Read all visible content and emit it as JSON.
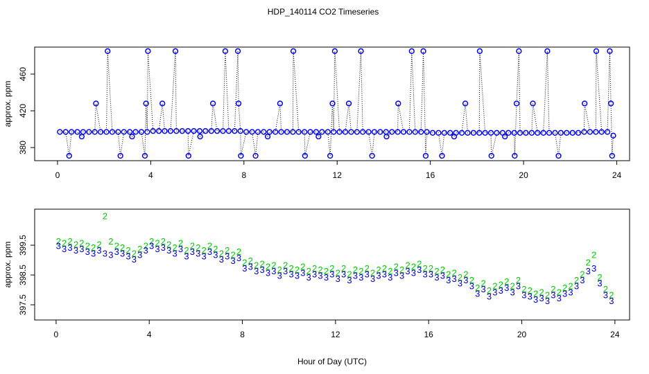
{
  "chart_data": [
    {
      "type": "line",
      "title": "HDP_140114  CO2 Timeseries",
      "ylabel": "approx. ppm",
      "xlim": [
        -0.98,
        24.55
      ],
      "xticks": [
        0,
        4,
        8,
        12,
        16,
        20,
        24
      ],
      "ylim": [
        365.7,
        489.4
      ],
      "yticks": [
        380,
        420,
        460
      ],
      "x": [
        0.1,
        0.35,
        0.5,
        0.6,
        0.85,
        1.04,
        1.1,
        1.35,
        1.6,
        1.65,
        1.85,
        2.1,
        2.15,
        2.35,
        2.6,
        2.7,
        2.85,
        3.1,
        3.2,
        3.35,
        3.6,
        3.75,
        3.8,
        3.85,
        3.88,
        4.1,
        4.35,
        4.5,
        4.6,
        4.85,
        5.06,
        5.1,
        5.35,
        5.6,
        5.62,
        5.85,
        6.1,
        6.12,
        6.35,
        6.6,
        6.67,
        6.85,
        7.1,
        7.2,
        7.35,
        7.6,
        7.74,
        7.77,
        7.85,
        7.87,
        8.1,
        8.35,
        8.5,
        8.6,
        8.85,
        9.02,
        9.1,
        9.35,
        9.55,
        9.6,
        9.85,
        10.1,
        10.12,
        10.35,
        10.6,
        10.62,
        10.85,
        11.1,
        11.2,
        11.35,
        11.6,
        11.7,
        11.8,
        11.85,
        11.9,
        12.1,
        12.35,
        12.5,
        12.6,
        12.85,
        13.02,
        13.1,
        13.35,
        13.5,
        13.6,
        13.85,
        14.1,
        14.12,
        14.35,
        14.6,
        14.62,
        14.85,
        15.1,
        15.2,
        15.35,
        15.6,
        15.7,
        15.8,
        15.85,
        16.1,
        16.35,
        16.5,
        16.6,
        16.85,
        17.02,
        17.1,
        17.35,
        17.5,
        17.6,
        17.85,
        18.1,
        18.12,
        18.35,
        18.6,
        18.62,
        18.85,
        19.1,
        19.2,
        19.35,
        19.6,
        19.62,
        19.7,
        19.8,
        19.85,
        20.1,
        20.35,
        20.4,
        20.6,
        20.85,
        21.02,
        21.1,
        21.35,
        21.5,
        21.6,
        21.85,
        22.1,
        22.35,
        22.6,
        22.62,
        22.85,
        23.1,
        23.12,
        23.35,
        23.6,
        23.7,
        23.75,
        23.8,
        23.85
      ],
      "series": [
        {
          "color": "#0000ff",
          "line_color": "#000000",
          "values": [
            397,
            397,
            371,
            397,
            397,
            392,
            397,
            397,
            397,
            428,
            397,
            397,
            485,
            397,
            397,
            371,
            397,
            397,
            392,
            397,
            397,
            371,
            428,
            397,
            485,
            398,
            398,
            428,
            398,
            398,
            485,
            398,
            398,
            398,
            371,
            398,
            398,
            392,
            398,
            398,
            428,
            398,
            398,
            485,
            398,
            398,
            485,
            428,
            398,
            371,
            397,
            397,
            371,
            397,
            397,
            392,
            397,
            397,
            428,
            397,
            397,
            397,
            485,
            397,
            397,
            371,
            397,
            397,
            392,
            397,
            397,
            371,
            428,
            397,
            485,
            397,
            397,
            428,
            397,
            397,
            485,
            397,
            397,
            371,
            397,
            397,
            397,
            392,
            397,
            397,
            428,
            397,
            397,
            485,
            397,
            397,
            485,
            371,
            397,
            396,
            396,
            371,
            396,
            396,
            392,
            396,
            396,
            428,
            396,
            396,
            396,
            485,
            396,
            396,
            371,
            396,
            396,
            392,
            396,
            396,
            371,
            428,
            485,
            396,
            396,
            396,
            428,
            396,
            396,
            485,
            396,
            396,
            371,
            396,
            396,
            396,
            396,
            397,
            428,
            397,
            397,
            485,
            397,
            397,
            485,
            428,
            371,
            393
          ]
        }
      ]
    },
    {
      "type": "scatter",
      "ylabel": "approx. ppm",
      "xlabel": "Hour of Day (UTC)",
      "xlim": [
        -0.92,
        24.63
      ],
      "xticks": [
        0,
        4,
        8,
        12,
        16,
        20,
        24
      ],
      "ylim": [
        396.99,
        400.71
      ],
      "yticks": [
        397.5,
        398.5,
        399.5
      ],
      "x": [
        0.1,
        0.35,
        0.6,
        0.85,
        1.1,
        1.35,
        1.6,
        1.85,
        2.1,
        2.35,
        2.6,
        2.85,
        3.1,
        3.35,
        3.6,
        3.85,
        4.1,
        4.35,
        4.6,
        4.85,
        5.1,
        5.35,
        5.6,
        5.85,
        6.1,
        6.35,
        6.6,
        6.85,
        7.1,
        7.35,
        7.6,
        7.85,
        8.1,
        8.35,
        8.6,
        8.85,
        9.1,
        9.35,
        9.6,
        9.85,
        10.1,
        10.35,
        10.6,
        10.85,
        11.1,
        11.35,
        11.6,
        11.85,
        12.1,
        12.35,
        12.6,
        12.85,
        13.1,
        13.35,
        13.6,
        13.85,
        14.1,
        14.35,
        14.6,
        14.85,
        15.1,
        15.35,
        15.6,
        15.85,
        16.1,
        16.35,
        16.6,
        16.85,
        17.1,
        17.35,
        17.6,
        17.85,
        18.1,
        18.35,
        18.6,
        18.85,
        19.1,
        19.35,
        19.6,
        19.85,
        20.1,
        20.35,
        20.6,
        20.85,
        21.1,
        21.35,
        21.6,
        21.85,
        22.1,
        22.35,
        22.6,
        22.85,
        23.1,
        23.35,
        23.6,
        23.85
      ],
      "series": [
        {
          "marker": "2",
          "color": "#00cc00",
          "values": [
            399.6,
            399.55,
            399.6,
            399.5,
            399.55,
            399.45,
            399.4,
            399.5,
            400.45,
            399.6,
            399.45,
            399.4,
            399.3,
            399.2,
            399.35,
            399.45,
            399.6,
            399.55,
            399.6,
            399.5,
            399.4,
            399.55,
            399.3,
            399.45,
            399.4,
            399.3,
            399.45,
            399.35,
            399.2,
            399.3,
            399.15,
            399.25,
            398.9,
            398.95,
            398.8,
            398.85,
            398.75,
            398.8,
            398.65,
            398.8,
            398.7,
            398.65,
            398.75,
            398.6,
            398.7,
            398.65,
            398.6,
            398.7,
            398.55,
            398.7,
            398.5,
            398.65,
            398.6,
            398.7,
            398.55,
            398.65,
            398.7,
            398.6,
            398.75,
            398.65,
            398.8,
            398.75,
            398.85,
            398.7,
            398.7,
            398.6,
            398.65,
            398.5,
            398.55,
            398.4,
            398.5,
            398.3,
            398.05,
            398.2,
            397.95,
            398.1,
            398.15,
            398.25,
            398.1,
            398.3,
            398.0,
            397.95,
            397.85,
            397.9,
            397.8,
            398.0,
            397.9,
            398.05,
            398.1,
            398.3,
            398.5,
            398.9,
            399.15,
            398.4,
            398.0,
            397.8
          ]
        },
        {
          "marker": "3",
          "color": "#0000cc",
          "values": [
            399.45,
            399.35,
            399.4,
            399.3,
            399.35,
            399.25,
            399.2,
            399.3,
            399.2,
            399.15,
            399.25,
            399.2,
            399.1,
            399.0,
            399.15,
            399.3,
            399.45,
            399.35,
            399.4,
            399.3,
            399.2,
            399.35,
            399.1,
            399.25,
            399.2,
            399.1,
            399.25,
            399.15,
            399.0,
            399.1,
            398.95,
            399.05,
            398.7,
            398.75,
            398.6,
            398.65,
            398.55,
            398.6,
            398.45,
            398.6,
            398.5,
            398.45,
            398.55,
            398.4,
            398.5,
            398.45,
            398.4,
            398.5,
            398.35,
            398.5,
            398.3,
            398.45,
            398.4,
            398.5,
            398.35,
            398.45,
            398.5,
            398.4,
            398.55,
            398.45,
            398.6,
            398.55,
            398.65,
            398.5,
            398.5,
            398.4,
            398.45,
            398.3,
            398.35,
            398.2,
            398.3,
            398.1,
            397.85,
            398.0,
            397.75,
            397.9,
            397.95,
            398.05,
            397.9,
            398.1,
            397.8,
            397.75,
            397.65,
            397.7,
            397.6,
            397.8,
            397.7,
            397.85,
            397.9,
            398.1,
            398.3,
            398.6,
            398.7,
            398.2,
            397.8,
            397.6
          ]
        }
      ]
    }
  ]
}
